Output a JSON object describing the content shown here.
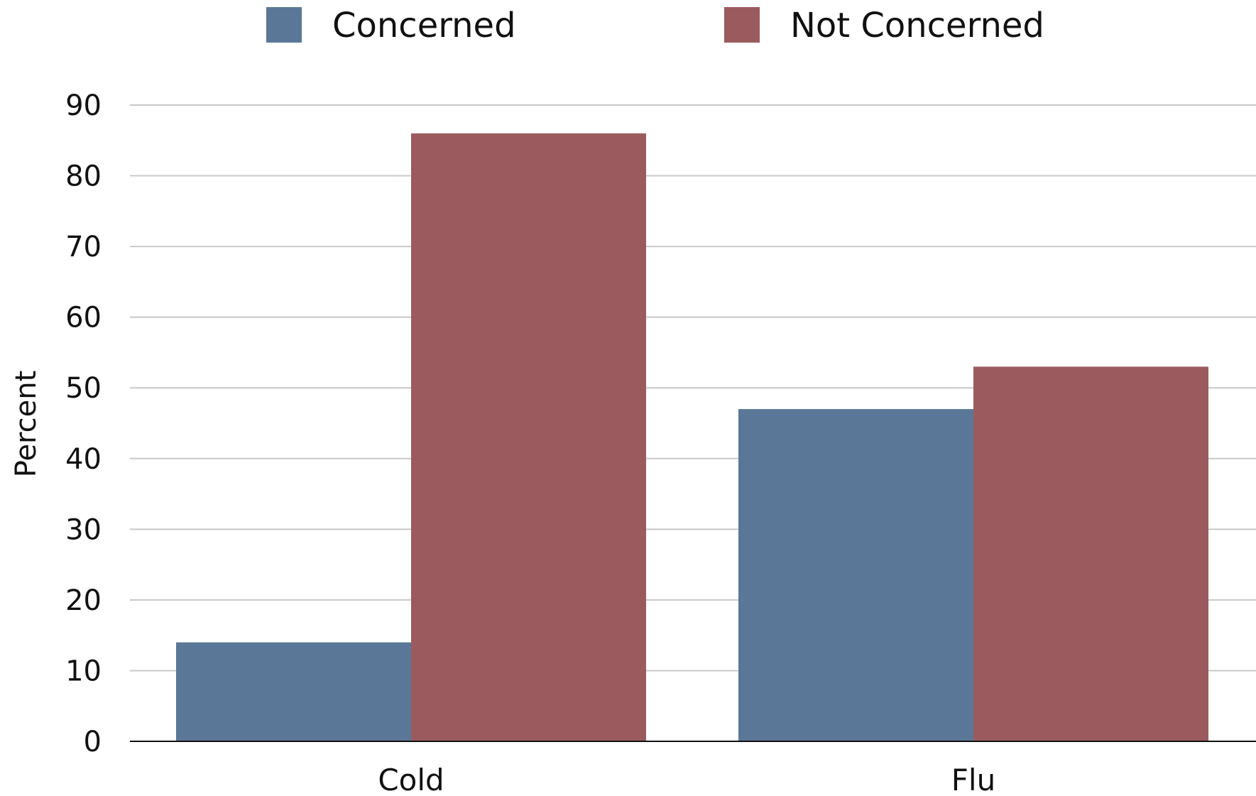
{
  "chart_data": {
    "type": "bar",
    "title": "",
    "xlabel": "",
    "ylabel": "Percent",
    "ylim": [
      0,
      90
    ],
    "yticks": [
      0,
      10,
      20,
      30,
      40,
      50,
      60,
      70,
      80,
      90
    ],
    "categories": [
      "Cold",
      "Flu"
    ],
    "series": [
      {
        "name": "Concerned",
        "color": "#5b7797",
        "values": [
          14,
          47
        ]
      },
      {
        "name": "Not Concerned",
        "color": "#9b5b5e",
        "values": [
          86,
          53
        ]
      }
    ],
    "grid": true,
    "legend_position": "top"
  }
}
